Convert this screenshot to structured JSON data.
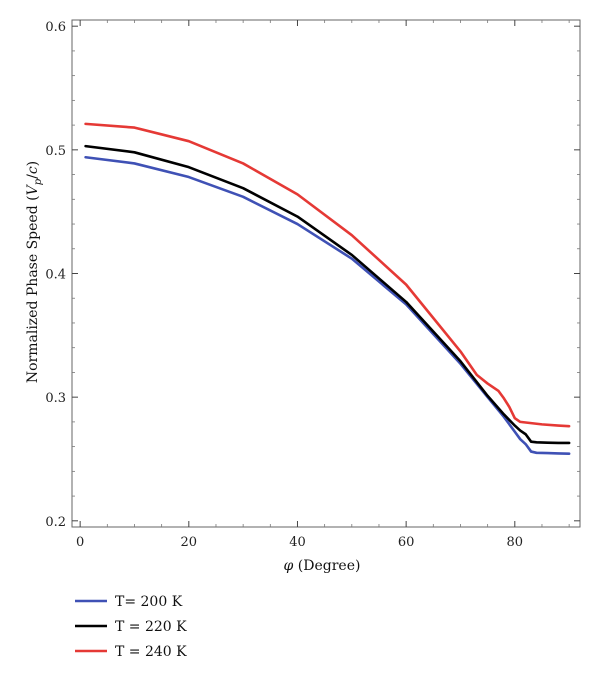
{
  "chart_data": {
    "type": "line",
    "xlabel_symbol": "φ",
    "xlabel_rest": " (Degree)",
    "ylabel_main": "Normalized Phase Speed (",
    "ylabel_var": "V",
    "ylabel_sub": "p",
    "ylabel_slash": "/",
    "ylabel_c": "c",
    "ylabel_close": ")",
    "xlim": [
      -1.5,
      92
    ],
    "ylim": [
      0.195,
      0.605
    ],
    "x_ticks": [
      0,
      20,
      40,
      60,
      80
    ],
    "x_tick_labels": [
      "0",
      "20",
      "40",
      "60",
      "80"
    ],
    "y_ticks": [
      0.2,
      0.3,
      0.4,
      0.5,
      0.6
    ],
    "y_tick_labels": [
      "0.2",
      "0.3",
      "0.4",
      "0.5",
      "0.6"
    ],
    "grid": false,
    "legend_position": "bottom-left",
    "series": [
      {
        "name": "T= 200 K",
        "color": "#3f51b5",
        "x": [
          1,
          10,
          20,
          30,
          40,
          50,
          60,
          70,
          75,
          78,
          80,
          81,
          82,
          83,
          84,
          86,
          88,
          90
        ],
        "y": [
          0.494,
          0.489,
          0.478,
          0.462,
          0.44,
          0.412,
          0.375,
          0.327,
          0.3,
          0.284,
          0.272,
          0.266,
          0.262,
          0.256,
          0.255,
          0.2548,
          0.2545,
          0.2543
        ]
      },
      {
        "name": "T = 220 K",
        "color": "#000000",
        "x": [
          1,
          10,
          20,
          30,
          40,
          50,
          60,
          70,
          75,
          78,
          80,
          81,
          82,
          83,
          84,
          86,
          88,
          90
        ],
        "y": [
          0.503,
          0.498,
          0.486,
          0.469,
          0.446,
          0.415,
          0.377,
          0.329,
          0.301,
          0.286,
          0.277,
          0.273,
          0.27,
          0.264,
          0.2635,
          0.2632,
          0.263,
          0.263
        ]
      },
      {
        "name": "T = 240 K",
        "color": "#e53935",
        "x": [
          1,
          10,
          20,
          30,
          40,
          50,
          60,
          70,
          73,
          75,
          77,
          78,
          79,
          80,
          81,
          83,
          85,
          88,
          90
        ],
        "y": [
          0.521,
          0.518,
          0.507,
          0.489,
          0.464,
          0.431,
          0.391,
          0.337,
          0.318,
          0.311,
          0.305,
          0.299,
          0.292,
          0.283,
          0.28,
          0.279,
          0.278,
          0.277,
          0.2765
        ]
      }
    ]
  }
}
